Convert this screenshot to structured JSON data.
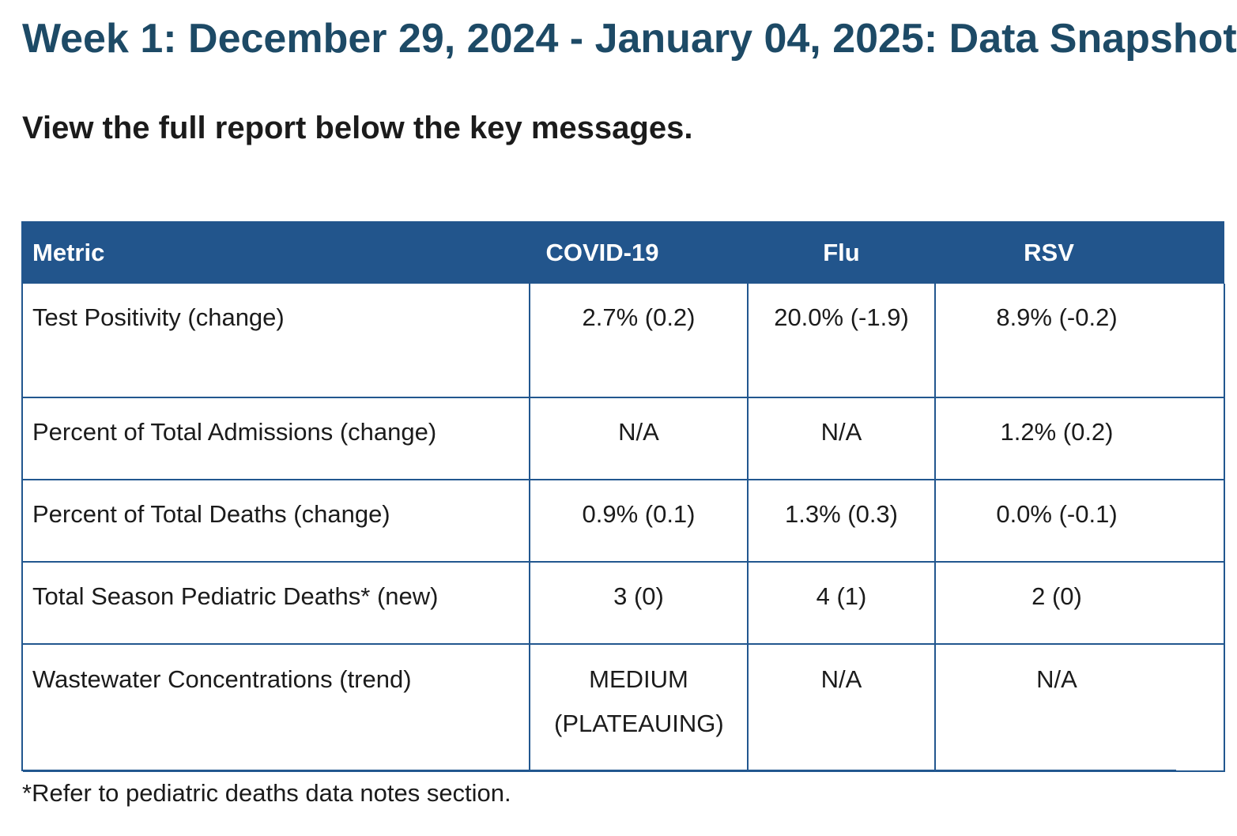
{
  "page": {
    "title": "Week 1: December 29, 2024 - January 04, 2025: Data Snapshot",
    "subtitle": "View the full report below the key messages.",
    "footnote": "*Refer to pediatric deaths data notes section."
  },
  "table": {
    "headers": [
      "Metric",
      "COVID-19",
      "Flu",
      "RSV"
    ],
    "rows": [
      [
        "Test Positivity (change)",
        "2.7% (0.2)",
        "20.0% (-1.9)",
        "8.9% (-0.2)"
      ],
      [
        "Percent of Total Admissions (change)",
        "N/A",
        "N/A",
        "1.2% (0.2)"
      ],
      [
        "Percent of Total Deaths (change)",
        "0.9% (0.1)",
        "1.3% (0.3)",
        "0.0% (-0.1)"
      ],
      [
        "Total Season Pediatric Deaths* (new)",
        "3 (0)",
        "4 (1)",
        "2 (0)"
      ],
      [
        "Wastewater Concentrations (trend)",
        "MEDIUM (PLATEAUING)",
        "N/A",
        "N/A"
      ]
    ]
  },
  "colors": {
    "title": "#1d4a66",
    "header_bg": "#22558c",
    "border": "#22578f"
  }
}
